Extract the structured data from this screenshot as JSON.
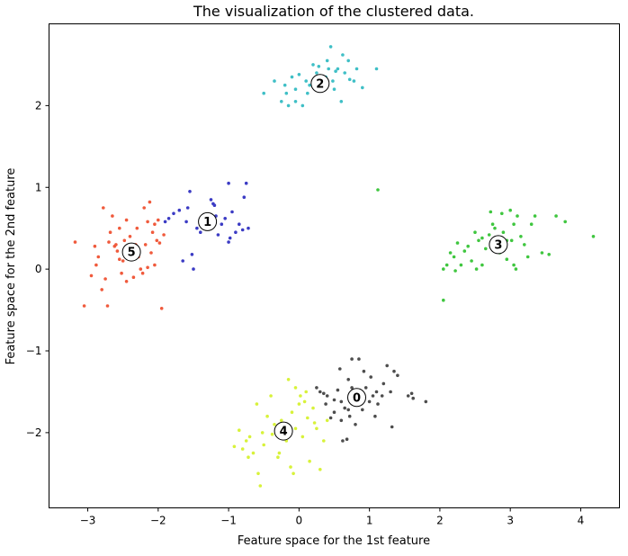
{
  "chart_data": {
    "type": "scatter",
    "title": "The visualization of the clustered data.",
    "xlabel": "Feature space for the 1st feature",
    "ylabel": "Feature space for the 2nd feature",
    "xlim": [
      -3.55,
      4.55
    ],
    "ylim": [
      -2.92,
      3.0
    ],
    "xticks": [
      -3,
      -2,
      -1,
      0,
      1,
      2,
      3,
      4
    ],
    "yticks": [
      -2,
      -1,
      0,
      1,
      2
    ],
    "grid": false,
    "legend": "none",
    "series": [
      {
        "cluster": "0",
        "color": "#4d4d4d",
        "center": [
          0.82,
          -1.57
        ],
        "points": [
          [
            0.25,
            -1.45
          ],
          [
            0.3,
            -1.5
          ],
          [
            0.35,
            -1.52
          ],
          [
            0.4,
            -1.55
          ],
          [
            0.5,
            -1.6
          ],
          [
            0.55,
            -1.48
          ],
          [
            0.6,
            -1.62
          ],
          [
            0.65,
            -1.7
          ],
          [
            0.7,
            -1.35
          ],
          [
            0.72,
            -1.8
          ],
          [
            0.75,
            -1.45
          ],
          [
            0.78,
            -1.55
          ],
          [
            0.8,
            -1.9
          ],
          [
            0.85,
            -1.65
          ],
          [
            0.88,
            -1.5
          ],
          [
            0.9,
            -1.72
          ],
          [
            0.92,
            -1.25
          ],
          [
            0.95,
            -1.45
          ],
          [
            1.0,
            -1.62
          ],
          [
            1.02,
            -1.32
          ],
          [
            1.05,
            -1.55
          ],
          [
            1.08,
            -1.8
          ],
          [
            1.1,
            -1.5
          ],
          [
            1.12,
            -1.65
          ],
          [
            1.18,
            -1.55
          ],
          [
            1.2,
            -1.4
          ],
          [
            1.25,
            -1.18
          ],
          [
            1.3,
            -1.5
          ],
          [
            1.35,
            -1.25
          ],
          [
            1.4,
            -1.3
          ],
          [
            1.55,
            -1.55
          ],
          [
            1.6,
            -1.52
          ],
          [
            1.62,
            -1.58
          ],
          [
            1.8,
            -1.62
          ],
          [
            0.6,
            -1.85
          ],
          [
            0.68,
            -2.08
          ],
          [
            0.75,
            -1.1
          ],
          [
            0.5,
            -1.75
          ],
          [
            0.45,
            -1.82
          ],
          [
            0.38,
            -1.65
          ],
          [
            1.32,
            -1.93
          ],
          [
            0.62,
            -2.1
          ],
          [
            0.85,
            -1.1
          ],
          [
            0.58,
            -1.22
          ],
          [
            0.7,
            -1.72
          ]
        ]
      },
      {
        "cluster": "1",
        "color": "#3b3bc4",
        "center": [
          -1.3,
          0.58
        ],
        "points": [
          [
            -1.9,
            0.58
          ],
          [
            -1.85,
            0.62
          ],
          [
            -1.78,
            0.68
          ],
          [
            -1.7,
            0.72
          ],
          [
            -1.65,
            0.1
          ],
          [
            -1.58,
            0.75
          ],
          [
            -1.55,
            0.95
          ],
          [
            -1.52,
            0.18
          ],
          [
            -1.5,
            0.0
          ],
          [
            -1.45,
            0.5
          ],
          [
            -1.4,
            0.45
          ],
          [
            -1.35,
            0.55
          ],
          [
            -1.3,
            0.6
          ],
          [
            -1.25,
            0.85
          ],
          [
            -1.22,
            0.8
          ],
          [
            -1.2,
            0.78
          ],
          [
            -1.18,
            0.65
          ],
          [
            -1.15,
            0.42
          ],
          [
            -1.1,
            0.55
          ],
          [
            -1.05,
            0.62
          ],
          [
            -1.0,
            1.05
          ],
          [
            -0.98,
            0.38
          ],
          [
            -0.95,
            0.7
          ],
          [
            -0.9,
            0.45
          ],
          [
            -0.85,
            0.55
          ],
          [
            -0.8,
            0.48
          ],
          [
            -0.78,
            0.88
          ],
          [
            -0.75,
            1.05
          ],
          [
            -0.72,
            0.5
          ],
          [
            -1.0,
            0.33
          ],
          [
            -1.6,
            0.58
          ]
        ]
      },
      {
        "cluster": "2",
        "color": "#3fbfc6",
        "center": [
          0.3,
          2.27
        ],
        "points": [
          [
            -0.5,
            2.15
          ],
          [
            -0.35,
            2.3
          ],
          [
            -0.25,
            2.05
          ],
          [
            -0.2,
            2.25
          ],
          [
            -0.15,
            2.0
          ],
          [
            -0.1,
            2.35
          ],
          [
            -0.05,
            2.2
          ],
          [
            0.0,
            2.38
          ],
          [
            0.05,
            2.0
          ],
          [
            0.1,
            2.3
          ],
          [
            0.15,
            2.25
          ],
          [
            0.2,
            2.5
          ],
          [
            0.25,
            2.4
          ],
          [
            0.3,
            2.35
          ],
          [
            0.35,
            2.28
          ],
          [
            0.4,
            2.55
          ],
          [
            0.42,
            2.45
          ],
          [
            0.45,
            2.72
          ],
          [
            0.48,
            2.3
          ],
          [
            0.5,
            2.2
          ],
          [
            0.55,
            2.45
          ],
          [
            0.6,
            2.05
          ],
          [
            0.62,
            2.62
          ],
          [
            0.65,
            2.4
          ],
          [
            0.7,
            2.55
          ],
          [
            0.72,
            2.32
          ],
          [
            0.78,
            2.3
          ],
          [
            0.82,
            2.45
          ],
          [
            0.9,
            2.22
          ],
          [
            1.1,
            2.45
          ],
          [
            -0.05,
            2.05
          ],
          [
            0.28,
            2.48
          ],
          [
            0.12,
            2.15
          ],
          [
            -0.18,
            2.15
          ],
          [
            0.38,
            2.35
          ],
          [
            0.52,
            2.42
          ]
        ]
      },
      {
        "cluster": "3",
        "color": "#3fc63f",
        "center": [
          2.83,
          0.3
        ],
        "points": [
          [
            2.05,
            -0.38
          ],
          [
            2.05,
            0.0
          ],
          [
            2.1,
            0.05
          ],
          [
            2.15,
            0.2
          ],
          [
            2.2,
            0.15
          ],
          [
            2.22,
            -0.02
          ],
          [
            2.25,
            0.32
          ],
          [
            2.3,
            0.05
          ],
          [
            2.35,
            0.22
          ],
          [
            2.4,
            0.28
          ],
          [
            2.45,
            0.1
          ],
          [
            2.5,
            0.45
          ],
          [
            2.52,
            0.0
          ],
          [
            2.55,
            0.35
          ],
          [
            2.6,
            0.05
          ],
          [
            2.65,
            0.25
          ],
          [
            2.7,
            0.42
          ],
          [
            2.72,
            0.7
          ],
          [
            2.75,
            0.55
          ],
          [
            2.78,
            0.5
          ],
          [
            2.8,
            0.3
          ],
          [
            2.85,
            0.2
          ],
          [
            2.88,
            0.68
          ],
          [
            2.9,
            0.45
          ],
          [
            2.95,
            0.12
          ],
          [
            3.0,
            0.72
          ],
          [
            3.02,
            0.35
          ],
          [
            3.05,
            0.55
          ],
          [
            3.08,
            0.0
          ],
          [
            3.1,
            0.65
          ],
          [
            3.15,
            0.4
          ],
          [
            3.2,
            0.3
          ],
          [
            3.25,
            0.15
          ],
          [
            3.3,
            0.55
          ],
          [
            3.35,
            0.65
          ],
          [
            3.45,
            0.2
          ],
          [
            3.55,
            0.18
          ],
          [
            3.65,
            0.65
          ],
          [
            3.78,
            0.58
          ],
          [
            4.18,
            0.4
          ],
          [
            1.12,
            0.97
          ],
          [
            2.6,
            0.38
          ],
          [
            2.95,
            0.35
          ],
          [
            3.05,
            0.05
          ]
        ]
      },
      {
        "cluster": "4",
        "color": "#d8f23a",
        "center": [
          -0.22,
          -1.98
        ],
        "points": [
          [
            -0.92,
            -2.17
          ],
          [
            -0.85,
            -1.97
          ],
          [
            -0.8,
            -2.2
          ],
          [
            -0.75,
            -2.1
          ],
          [
            -0.7,
            -2.05
          ],
          [
            -0.65,
            -2.25
          ],
          [
            -0.6,
            -1.65
          ],
          [
            -0.58,
            -2.5
          ],
          [
            -0.55,
            -2.65
          ],
          [
            -0.5,
            -2.15
          ],
          [
            -0.45,
            -1.8
          ],
          [
            -0.4,
            -1.55
          ],
          [
            -0.38,
            -2.02
          ],
          [
            -0.35,
            -1.9
          ],
          [
            -0.3,
            -2.3
          ],
          [
            -0.25,
            -1.85
          ],
          [
            -0.2,
            -2.05
          ],
          [
            -0.15,
            -1.35
          ],
          [
            -0.12,
            -2.42
          ],
          [
            -0.1,
            -1.75
          ],
          [
            -0.05,
            -1.95
          ],
          [
            0.0,
            -1.65
          ],
          [
            0.02,
            -1.55
          ],
          [
            0.05,
            -2.05
          ],
          [
            0.1,
            -1.5
          ],
          [
            0.12,
            -1.82
          ],
          [
            0.15,
            -2.35
          ],
          [
            0.2,
            -1.7
          ],
          [
            0.25,
            -1.95
          ],
          [
            0.3,
            -2.45
          ],
          [
            0.35,
            -2.1
          ],
          [
            0.4,
            -1.85
          ],
          [
            -0.05,
            -1.45
          ],
          [
            -0.28,
            -2.25
          ],
          [
            -0.72,
            -2.3
          ],
          [
            -0.52,
            -2.0
          ],
          [
            0.08,
            -1.62
          ],
          [
            -0.18,
            -2.1
          ],
          [
            0.22,
            -1.88
          ],
          [
            -0.08,
            -2.5
          ]
        ]
      },
      {
        "cluster": "5",
        "color": "#f05a3c",
        "center": [
          -2.38,
          0.21
        ],
        "points": [
          [
            -3.18,
            0.33
          ],
          [
            -3.05,
            -0.45
          ],
          [
            -2.95,
            -0.08
          ],
          [
            -2.9,
            0.28
          ],
          [
            -2.85,
            0.15
          ],
          [
            -2.8,
            -0.25
          ],
          [
            -2.78,
            0.75
          ],
          [
            -2.75,
            -0.12
          ],
          [
            -2.72,
            -0.45
          ],
          [
            -2.68,
            0.45
          ],
          [
            -2.65,
            0.65
          ],
          [
            -2.6,
            0.3
          ],
          [
            -2.58,
            0.22
          ],
          [
            -2.55,
            0.5
          ],
          [
            -2.52,
            -0.05
          ],
          [
            -2.5,
            0.1
          ],
          [
            -2.48,
            0.35
          ],
          [
            -2.45,
            0.6
          ],
          [
            -2.42,
            0.25
          ],
          [
            -2.4,
            0.4
          ],
          [
            -2.35,
            -0.1
          ],
          [
            -2.32,
            0.3
          ],
          [
            -2.3,
            0.5
          ],
          [
            -2.28,
            0.15
          ],
          [
            -2.25,
            0.0
          ],
          [
            -2.22,
            -0.05
          ],
          [
            -2.2,
            0.75
          ],
          [
            -2.18,
            0.3
          ],
          [
            -2.15,
            0.58
          ],
          [
            -2.12,
            0.82
          ],
          [
            -2.1,
            0.2
          ],
          [
            -2.08,
            0.45
          ],
          [
            -2.05,
            0.05
          ],
          [
            -2.02,
            0.35
          ],
          [
            -2.0,
            0.6
          ],
          [
            -1.98,
            0.32
          ],
          [
            -1.95,
            -0.48
          ],
          [
            -1.92,
            0.42
          ],
          [
            -2.88,
            0.05
          ],
          [
            -2.62,
            0.28
          ],
          [
            -2.45,
            -0.15
          ],
          [
            -2.15,
            0.02
          ],
          [
            -2.35,
            0.18
          ],
          [
            -2.05,
            0.55
          ],
          [
            -2.7,
            0.33
          ],
          [
            -2.55,
            0.12
          ]
        ]
      }
    ]
  }
}
